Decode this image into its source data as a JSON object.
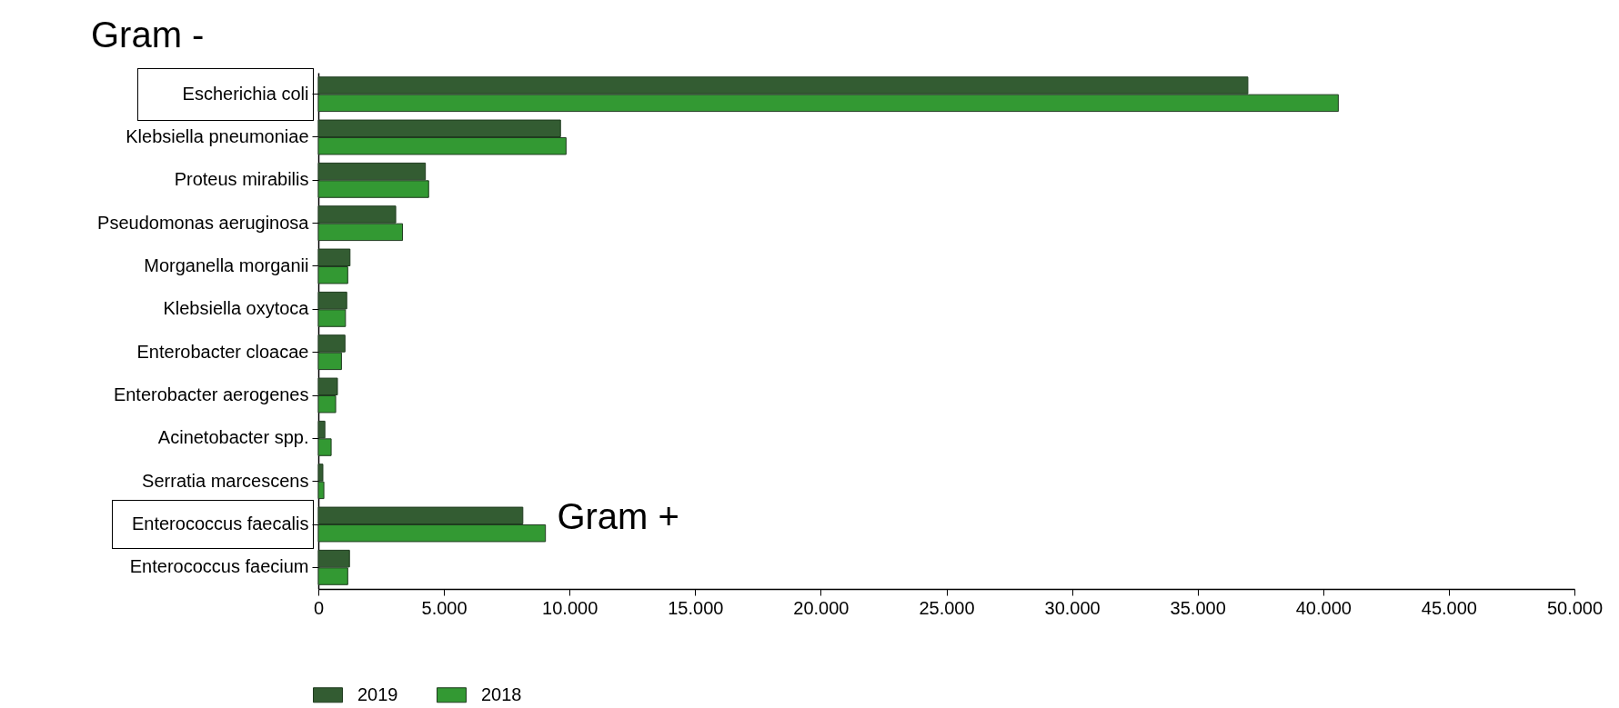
{
  "chart_data": {
    "type": "bar",
    "orientation": "horizontal",
    "categories": [
      "Escherichia coli",
      "Klebsiella pneumoniae",
      "Proteus mirabilis",
      "Pseudomonas aeruginosa",
      "Morganella morganii",
      "Klebsiella oxytoca",
      "Enterobacter cloacae",
      "Enterobacter aerogenes",
      "Acinetobacter spp.",
      "Serratia marcescens",
      "Enterococcus faecalis",
      "Enterococcus faecium"
    ],
    "series": [
      {
        "name": "2019",
        "color": "#335c32",
        "values": [
          37000,
          9640,
          4260,
          3080,
          1260,
          1130,
          1060,
          760,
          260,
          180,
          8140,
          1240
        ]
      },
      {
        "name": "2018",
        "color": "#339933",
        "values": [
          40600,
          9860,
          4390,
          3350,
          1170,
          1080,
          920,
          690,
          510,
          220,
          9040,
          1170
        ]
      }
    ],
    "xlim": [
      0,
      50000
    ],
    "xticks": [
      {
        "value": 0,
        "label": "0"
      },
      {
        "value": 5000,
        "label": "5.000"
      },
      {
        "value": 10000,
        "label": "10.000"
      },
      {
        "value": 15000,
        "label": "15.000"
      },
      {
        "value": 20000,
        "label": "20.000"
      },
      {
        "value": 25000,
        "label": "25.000"
      },
      {
        "value": 30000,
        "label": "30.000"
      },
      {
        "value": 35000,
        "label": "35.000"
      },
      {
        "value": 40000,
        "label": "40.000"
      },
      {
        "value": 45000,
        "label": "45.000"
      },
      {
        "value": 50000,
        "label": "50.000"
      }
    ],
    "annotations": [
      "Gram -",
      "Gram +"
    ],
    "grid": false,
    "legend": "bottom"
  }
}
